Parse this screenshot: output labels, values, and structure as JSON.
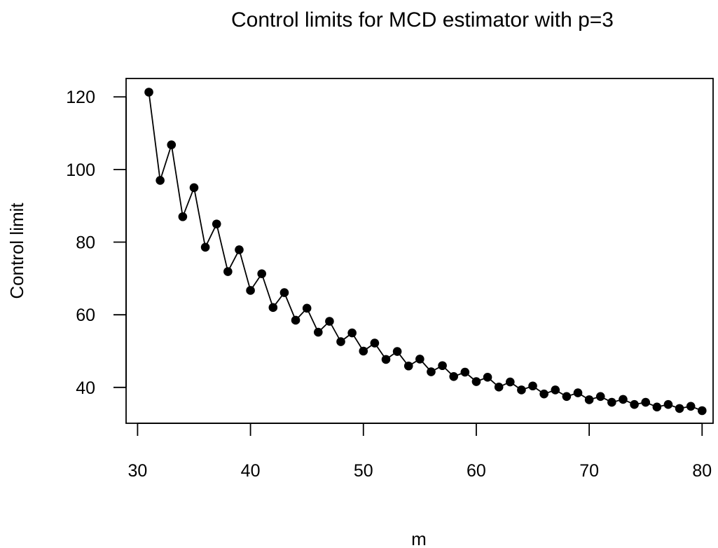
{
  "chart_data": {
    "type": "line",
    "title": "Control limits for MCD estimator with p=3",
    "xlabel": "m",
    "ylabel": "Control limit",
    "xlim": [
      30,
      80
    ],
    "ylim": [
      33.6,
      121.3
    ],
    "x_ticks": [
      30,
      40,
      50,
      60,
      70,
      80
    ],
    "y_ticks": [
      40,
      60,
      80,
      100,
      120
    ],
    "grid": false,
    "legend": "none",
    "series": [
      {
        "x": [
          31,
          32,
          33,
          34,
          35,
          36,
          37,
          38,
          39,
          40,
          41,
          42,
          43,
          44,
          45,
          46,
          47,
          48,
          49,
          50,
          51,
          52,
          53,
          54,
          55,
          56,
          57,
          58,
          59,
          60,
          61,
          62,
          63,
          64,
          65,
          66,
          67,
          68,
          69,
          70,
          71,
          72,
          73,
          74,
          75,
          76,
          77,
          78,
          79,
          80
        ],
        "values": [
          121.3,
          97.0,
          106.8,
          87.0,
          95.0,
          78.6,
          85.0,
          71.9,
          77.9,
          66.7,
          71.3,
          62.0,
          66.1,
          58.5,
          61.8,
          55.2,
          58.2,
          52.6,
          55.0,
          50.0,
          52.2,
          47.7,
          49.9,
          45.9,
          47.8,
          44.3,
          46.0,
          43.0,
          44.2,
          41.6,
          42.8,
          40.1,
          41.5,
          39.3,
          40.4,
          38.2,
          39.3,
          37.5,
          38.5,
          36.6,
          37.5,
          35.9,
          36.7,
          35.3,
          35.9,
          34.6,
          35.3,
          34.2,
          34.8,
          33.6
        ],
        "color": "#000000"
      }
    ]
  }
}
